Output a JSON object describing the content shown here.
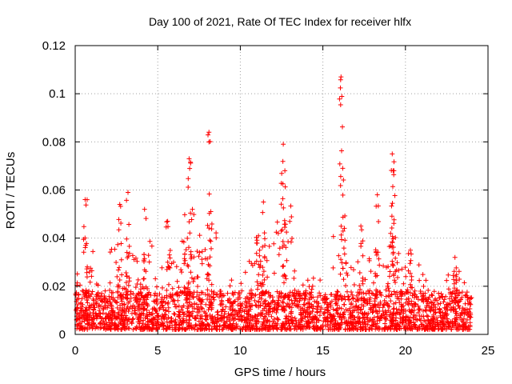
{
  "chart_data": {
    "type": "scatter",
    "title": "Day 100 of 2021, Rate Of TEC Index for receiver hlfx",
    "xlabel": "GPS time / hours",
    "ylabel": "ROTI / TECUs",
    "xlim": [
      0,
      25
    ],
    "ylim": [
      0,
      0.12
    ],
    "xticks": [
      0,
      5,
      10,
      15,
      20,
      25
    ],
    "xtick_labels": [
      "0",
      "5",
      "10",
      "15",
      "20",
      "25"
    ],
    "yticks": [
      0,
      0.02,
      0.04,
      0.06,
      0.08,
      0.1,
      0.12
    ],
    "ytick_labels": [
      "0",
      "0.02",
      "0.04",
      "0.06",
      "0.08",
      "0.1",
      "0.12"
    ],
    "grid": true,
    "marker": "+",
    "series": [
      {
        "name": "ROTI",
        "color": "#ff0000",
        "x_range": [
          0,
          24
        ],
        "baseline_range": [
          0.002,
          0.018
        ],
        "notable_values": [
          {
            "x": 0.6,
            "y": 0.056
          },
          {
            "x": 2.7,
            "y": 0.054
          },
          {
            "x": 3.2,
            "y": 0.059
          },
          {
            "x": 4.2,
            "y": 0.052
          },
          {
            "x": 5.6,
            "y": 0.047
          },
          {
            "x": 6.9,
            "y": 0.073
          },
          {
            "x": 7.1,
            "y": 0.052
          },
          {
            "x": 8.1,
            "y": 0.084
          },
          {
            "x": 11.1,
            "y": 0.041
          },
          {
            "x": 11.4,
            "y": 0.055
          },
          {
            "x": 12.6,
            "y": 0.079
          },
          {
            "x": 12.7,
            "y": 0.068
          },
          {
            "x": 16.1,
            "y": 0.107
          },
          {
            "x": 16.2,
            "y": 0.069
          },
          {
            "x": 17.3,
            "y": 0.045
          },
          {
            "x": 18.3,
            "y": 0.058
          },
          {
            "x": 19.2,
            "y": 0.075
          },
          {
            "x": 19.3,
            "y": 0.068
          },
          {
            "x": 20.3,
            "y": 0.035
          },
          {
            "x": 23.0,
            "y": 0.032
          }
        ]
      }
    ]
  }
}
